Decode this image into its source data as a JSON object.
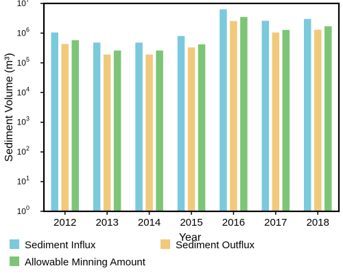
{
  "chart_data": {
    "type": "bar",
    "title": "",
    "xlabel": "Year",
    "ylabel": "Sediment Volume (m³)",
    "yscale": "log",
    "ylim": [
      1,
      10000000
    ],
    "y_tick_labels": [
      {
        "base": "10",
        "exp": "0"
      },
      {
        "base": "10",
        "exp": "1"
      },
      {
        "base": "10",
        "exp": "2"
      },
      {
        "base": "10",
        "exp": "3"
      },
      {
        "base": "10",
        "exp": "4"
      },
      {
        "base": "10",
        "exp": "5"
      },
      {
        "base": "10",
        "exp": "6"
      },
      {
        "base": "10",
        "exp": "7"
      }
    ],
    "categories": [
      "2012",
      "2013",
      "2014",
      "2015",
      "2016",
      "2017",
      "2018"
    ],
    "series": [
      {
        "name": "Sediment Influx",
        "color": "#7ac9dc",
        "values": [
          1050000,
          480000,
          480000,
          800000,
          6300000,
          2600000,
          3000000
        ]
      },
      {
        "name": "Sediment Outflux",
        "color": "#f1c97a",
        "values": [
          430000,
          190000,
          190000,
          330000,
          2550000,
          1050000,
          1300000
        ]
      },
      {
        "name": "Allowable Minning Amount",
        "color": "#7cc576",
        "values": [
          580000,
          260000,
          260000,
          420000,
          3500000,
          1280000,
          1700000
        ]
      }
    ],
    "grid": false,
    "legend_position": "bottom"
  }
}
